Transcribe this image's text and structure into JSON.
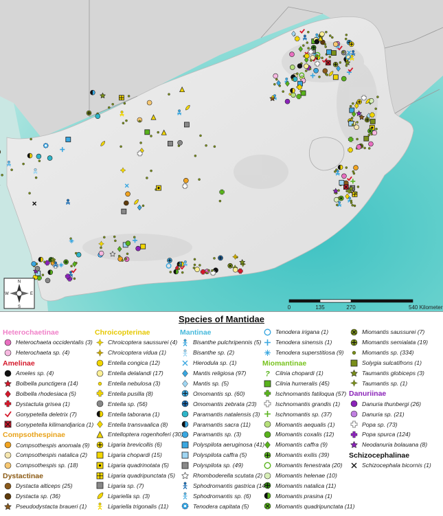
{
  "scale_bar": {
    "labels": [
      "0",
      "135",
      "270",
      "540 Kilometers"
    ]
  },
  "compass": {
    "letters": [
      "N",
      "E",
      "S",
      "W"
    ]
  },
  "legend": {
    "title": "Species of Mantidae",
    "groups": [
      {
        "name": "Heterochaetinae",
        "color": "#f07fc8",
        "items": [
          {
            "label": "Heterochaeta occidentalis (3)",
            "icon": "circle-pink"
          },
          {
            "label": "Heterochaeta sp. (4)",
            "icon": "circle-pink-light"
          }
        ]
      },
      {
        "name": "Amelinae",
        "color": "#d4192b",
        "items": [
          {
            "label": "Ameles sp. (4)",
            "icon": "half-red-black"
          },
          {
            "label": "Bolbella punctigera (14)",
            "icon": "star-red"
          },
          {
            "label": "Bolbella rhodesiaca (5)",
            "icon": "diamond-red"
          },
          {
            "label": "Dystactula grisea (1)",
            "icon": "cross-red"
          },
          {
            "label": "Gonypetella deletrix (7)",
            "icon": "check-red"
          },
          {
            "label": "Gonypetella kilimandjarica (1)",
            "icon": "square-x-red"
          }
        ]
      },
      {
        "name": "Compsothespinae",
        "color": "#e8a21a",
        "items": [
          {
            "label": "Compsothespis anomala (9)",
            "icon": "circle-orange"
          },
          {
            "label": "Compsothespis natalica (2)",
            "icon": "circle-cream"
          },
          {
            "label": "Compsothespis sp. (18)",
            "icon": "circle-orange-light"
          }
        ]
      },
      {
        "name": "Dystactinae",
        "color": "#8b5a14",
        "items": [
          {
            "label": "Dystacta alticeps (25)",
            "icon": "circle-brown"
          },
          {
            "label": "Dystacta sp. (36)",
            "icon": "circle-brown-dark"
          },
          {
            "label": "Pseudodystacta braueri (1)",
            "icon": "star-brown"
          }
        ]
      },
      {
        "name": "Chroicopterinae",
        "color": "#e6c800",
        "items": [
          {
            "label": "Chroicoptera saussurei (4)",
            "icon": "spark-yellow"
          },
          {
            "label": "Chroicoptera vidua (1)",
            "icon": "spark-yellow-dark"
          },
          {
            "label": "Entella congica (12)",
            "icon": "circle-yellow"
          },
          {
            "label": "Entella delalandi (17)",
            "icon": "circle-yellow-light"
          },
          {
            "label": "Entella nebulosa (3)",
            "icon": "dot-yellow"
          },
          {
            "label": "Entella pusilla (8)",
            "icon": "cross-yellow"
          },
          {
            "label": "Entella sp. (56)",
            "icon": "circle-yellow-big"
          },
          {
            "label": "Entella taborana (1)",
            "icon": "half-yellow"
          },
          {
            "label": "Entella transvaalica (8)",
            "icon": "diamond-yellow"
          },
          {
            "label": "Entelloptera rogenhoferi (30)",
            "icon": "triangle-yellow"
          },
          {
            "label": "Ligaria brevicollis (6)",
            "icon": "circle-plus-yellow"
          },
          {
            "label": "Ligaria chopardi (15)",
            "icon": "square-yellow"
          },
          {
            "label": "Ligaria quadrinotata (5)",
            "icon": "square-dot-yellow"
          },
          {
            "label": "Ligaria quadripunctata (5)",
            "icon": "square-grid-yellow"
          },
          {
            "label": "Ligaria sp. (7)",
            "icon": "square-yellow-solid"
          },
          {
            "label": "Ligariella sp. (3)",
            "icon": "leaf-yellow"
          },
          {
            "label": "Ligariella trigonalis (11)",
            "icon": "figure-yellow"
          }
        ]
      },
      {
        "name": "Mantinae",
        "color": "#46b9dc",
        "items": [
          {
            "label": "Bisanthe pulchripennis (5)",
            "icon": "figure-blue"
          },
          {
            "label": "Bisanthe sp. (2)",
            "icon": "figure-blue-light"
          },
          {
            "label": "Hierodula sp. (1)",
            "icon": "x-blue"
          },
          {
            "label": "Mantis religiosa (97)",
            "icon": "diamond-blue"
          },
          {
            "label": "Mantis sp. (5)",
            "icon": "diamond-blue-light"
          },
          {
            "label": "Omomantis sp. (60)",
            "icon": "circle-plus-blue"
          },
          {
            "label": "Omomantis zebrata (23)",
            "icon": "circle-plus-blue-dark"
          },
          {
            "label": "Paramantis natalensis (3)",
            "icon": "circle-teal"
          },
          {
            "label": "Paramantis sacra (11)",
            "icon": "half-blue"
          },
          {
            "label": "Paramantis sp. (3)",
            "icon": "circle-blue"
          },
          {
            "label": "Polyspilota aeruginosa (41)",
            "icon": "square-blue"
          },
          {
            "label": "Polyspilota caffra (5)",
            "icon": "square-blue-light"
          },
          {
            "label": "Polyspilota sp. (49)",
            "icon": "square-blue-solid"
          },
          {
            "label": "Rhomboderella scutata (2)",
            "icon": "star-outline"
          },
          {
            "label": "Sphodromantis gastrica (147)",
            "icon": "figure-blue-dark"
          },
          {
            "label": "Sphodromantis sp. (6)",
            "icon": "figure-blue-med"
          },
          {
            "label": "Tenodera capitata (5)",
            "icon": "gear-blue"
          },
          {
            "label": "Tenodera irigana (1)",
            "icon": "ring-blue"
          },
          {
            "label": "Tenodera sinensis (1)",
            "icon": "plus-blue"
          },
          {
            "label": "Tenodera superstitiosa (9)",
            "icon": "asterisk-blue"
          }
        ]
      },
      {
        "name": "Miomantinae",
        "color": "#78c31e",
        "items": [
          {
            "label": "Cilnia chopardi (1)",
            "icon": "question-green"
          },
          {
            "label": "Cilnia humeralis (45)",
            "icon": "square-green"
          },
          {
            "label": "Ischnomantis fatiloqua (57)",
            "icon": "cross-green"
          },
          {
            "label": "Ischnomantis grandis (1)",
            "icon": "cross-green-outline"
          },
          {
            "label": "Ischnomantis sp. (37)",
            "icon": "plus-green"
          },
          {
            "label": "Miomantis aequalis (1)",
            "icon": "circle-green-light"
          },
          {
            "label": "Miomantis coxalis (12)",
            "icon": "circle-green"
          },
          {
            "label": "Miomantis caffra (9)",
            "icon": "diamond-green"
          },
          {
            "label": "Miomantis exilis (39)",
            "icon": "circle-plus-green"
          },
          {
            "label": "Miomantis fenestrata (20)",
            "icon": "ring-green"
          },
          {
            "label": "Miomantis helenae (10)",
            "icon": "circle-green-pale"
          },
          {
            "label": "Miomantis natalica (11)",
            "icon": "circle-plus-green-dark"
          },
          {
            "label": "Miomantis prasina (1)",
            "icon": "half-green"
          },
          {
            "label": "Miomantis quadripunctata (11)",
            "icon": "circle-x-green"
          },
          {
            "label": "Miomantis saussurei (7)",
            "icon": "circle-x-olive"
          },
          {
            "label": "Miomantis semialata (19)",
            "icon": "circle-plus-olive"
          },
          {
            "label": "Miomantis sp. (334)",
            "icon": "dot-olive"
          },
          {
            "label": "Solygia sulcatifrons (1)",
            "icon": "square-olive"
          },
          {
            "label": "Taumantis globiceps (3)",
            "icon": "star-olive"
          },
          {
            "label": "Taumantis sp. (1)",
            "icon": "spark-olive"
          }
        ]
      },
      {
        "name": "Danuriinae",
        "color": "#8a23b8",
        "items": [
          {
            "label": "Danuria thunbergi (26)",
            "icon": "circle-purple"
          },
          {
            "label": "Danuria sp. (21)",
            "icon": "circle-purple-light"
          },
          {
            "label": "Popa sp. (73)",
            "icon": "cross-purple-outline"
          },
          {
            "label": "Popa spurca (124)",
            "icon": "cross-purple"
          },
          {
            "label": "Neodanuria bolauana (8)",
            "icon": "star-purple"
          }
        ]
      },
      {
        "name": "Schizocephalinae",
        "color": "#111111",
        "items": [
          {
            "label": "Schizocephala bicornis (1)",
            "icon": "x-black"
          }
        ]
      }
    ]
  }
}
